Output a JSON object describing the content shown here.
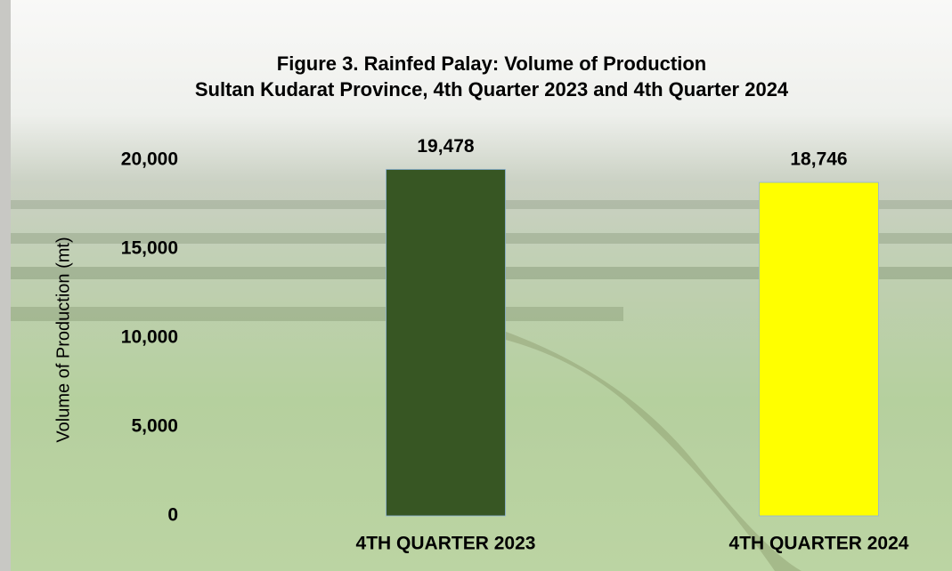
{
  "chart_data": {
    "type": "bar",
    "title": "Figure 3. Rainfed Palay: Volume of Production",
    "subtitle": "Sultan Kudarat Province, 4th Quarter 2023 and 4th Quarter 2024",
    "y_label": "Volume of Production (mt)",
    "categories": [
      "4TH QUARTER 2023",
      "4TH QUARTER 2024"
    ],
    "values": [
      19478,
      18746
    ],
    "value_labels": [
      "19,478",
      "18,746"
    ],
    "colors": [
      "#375623",
      "#ffff00"
    ],
    "ylim": [
      0,
      20000
    ],
    "yticks": [
      0,
      {
        "value": 5000,
        "label": "5,000"
      },
      {
        "value": 10000,
        "label": "10,000"
      },
      {
        "value": 15000,
        "label": "15,000"
      },
      {
        "value": 20000,
        "label": "20,000"
      }
    ],
    "grid": false
  }
}
